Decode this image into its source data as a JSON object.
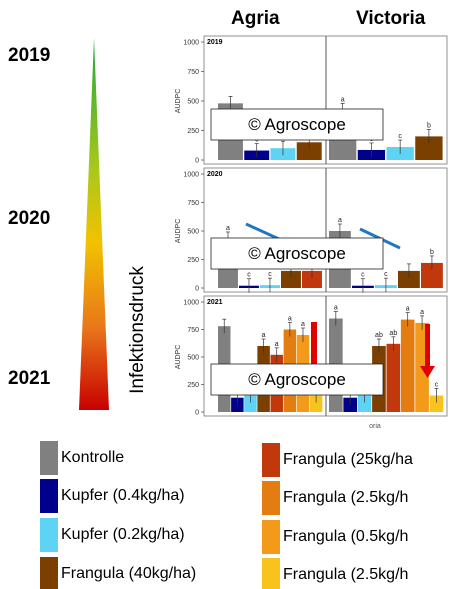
{
  "columns": [
    "Agria",
    "Victoria"
  ],
  "years": [
    "2019",
    "2020",
    "2021"
  ],
  "pressure_label": "Infektionsdruck",
  "watermark": "© Agroscope",
  "colors": {
    "Kontrolle": "#808080",
    "Kupfer04": "#00008b",
    "Kupfer02": "#5fd3f3",
    "Frangula40": "#7b3f00",
    "Frangula25": "#c1380c",
    "Frangula25b": "#e37d12",
    "Frangula05": "#f39a1b",
    "Frangula25c": "#f8c31c",
    "arrow": "#e00000",
    "decline_line": "#1f77c4"
  },
  "legend": [
    {
      "label": "Kontrolle",
      "color": "#808080"
    },
    {
      "label": "Kupfer (0.4kg/ha)",
      "color": "#00008b"
    },
    {
      "label": "Kupfer (0.2kg/ha)",
      "color": "#5fd3f3"
    },
    {
      "label": "Frangula (40kg/ha)",
      "color": "#7b3f00"
    },
    {
      "label": "Frangula (25kg/ha",
      "color": "#c1380c"
    },
    {
      "label": "Frangula (2.5kg/h",
      "color": "#e37d12"
    },
    {
      "label": "Frangula (0.5kg/h",
      "color": "#f39a1b"
    },
    {
      "label": "Frangula (2.5kg/h",
      "color": "#f8c31c"
    }
  ],
  "chart_data": [
    {
      "type": "bar",
      "year": "2019",
      "panel_title": "2019",
      "ylabel": "AUDPC",
      "ylim": [
        0,
        1000
      ],
      "yticks": [
        0,
        250,
        500,
        750,
        1000
      ],
      "facets": [
        {
          "name": "Agria",
          "bars": [
            {
              "treatment": "Kontrolle",
              "value": 480,
              "letter": ""
            },
            {
              "treatment": "Kupfer (0.4kg/ha)",
              "value": 80,
              "letter": "c"
            },
            {
              "treatment": "Kupfer (0.2kg/ha)",
              "value": 100,
              "letter": "bc"
            },
            {
              "treatment": "Frangula (40kg/ha)",
              "value": 150,
              "letter": "b"
            }
          ]
        },
        {
          "name": "Victoria",
          "bars": [
            {
              "treatment": "Kontrolle",
              "value": 420,
              "letter": "a"
            },
            {
              "treatment": "Kupfer (0.4kg/ha)",
              "value": 85,
              "letter": "c"
            },
            {
              "treatment": "Kupfer (0.2kg/ha)",
              "value": 110,
              "letter": "c"
            },
            {
              "treatment": "Frangula (40kg/ha)",
              "value": 200,
              "letter": "b"
            }
          ]
        }
      ]
    },
    {
      "type": "bar",
      "year": "2020",
      "panel_title": "2020",
      "ylabel": "AUDPC",
      "ylim": [
        0,
        1000
      ],
      "yticks": [
        0,
        250,
        500,
        750,
        1000
      ],
      "facets": [
        {
          "name": "Agria",
          "bars": [
            {
              "treatment": "Kontrolle",
              "value": 430,
              "letter": "a"
            },
            {
              "treatment": "Kupfer (0.4kg/ha)",
              "value": 20,
              "letter": "c"
            },
            {
              "treatment": "Kupfer (0.2kg/ha)",
              "value": 25,
              "letter": "c"
            },
            {
              "treatment": "Frangula (40kg/ha)",
              "value": 150,
              "letter": ""
            },
            {
              "treatment": "Frangula (25kg/ha",
              "value": 150,
              "letter": ""
            }
          ]
        },
        {
          "name": "Victoria",
          "bars": [
            {
              "treatment": "Kontrolle",
              "value": 500,
              "letter": "a"
            },
            {
              "treatment": "Kupfer (0.4kg/ha)",
              "value": 20,
              "letter": "c"
            },
            {
              "treatment": "Kupfer (0.2kg/ha)",
              "value": 25,
              "letter": "c"
            },
            {
              "treatment": "Frangula (40kg/ha)",
              "value": 150,
              "letter": ""
            },
            {
              "treatment": "Frangula (25kg/ha",
              "value": 220,
              "letter": "b"
            }
          ]
        }
      ]
    },
    {
      "type": "bar",
      "year": "2021",
      "panel_title": "2021",
      "ylabel": "AUDPC",
      "ylim": [
        0,
        1000
      ],
      "yticks": [
        0,
        250,
        500,
        750,
        1000
      ],
      "facets": [
        {
          "name": "Agria",
          "bars": [
            {
              "treatment": "Kontrolle",
              "value": 780,
              "letter": ""
            },
            {
              "treatment": "Kupfer (0.4kg/ha)",
              "value": 130,
              "letter": ""
            },
            {
              "treatment": "Kupfer (0.2kg/ha)",
              "value": 150,
              "letter": ""
            },
            {
              "treatment": "Frangula (40kg/ha)",
              "value": 600,
              "letter": "a"
            },
            {
              "treatment": "Frangula (25kg/ha",
              "value": 520,
              "letter": "a"
            },
            {
              "treatment": "Frangula (2.5kg/h",
              "value": 750,
              "letter": "a"
            },
            {
              "treatment": "Frangula (0.5kg/h",
              "value": 700,
              "letter": "a"
            },
            {
              "treatment": "Frangula (2.5kg/h",
              "value": 150,
              "letter": ""
            }
          ]
        },
        {
          "name": "Victoria",
          "bars": [
            {
              "treatment": "Kontrolle",
              "value": 850,
              "letter": "a"
            },
            {
              "treatment": "Kupfer (0.4kg/ha)",
              "value": 130,
              "letter": ""
            },
            {
              "treatment": "Kupfer (0.2kg/ha)",
              "value": 150,
              "letter": ""
            },
            {
              "treatment": "Frangula (40kg/ha)",
              "value": 600,
              "letter": "ab"
            },
            {
              "treatment": "Frangula (25kg/ha",
              "value": 620,
              "letter": "ab"
            },
            {
              "treatment": "Frangula (2.5kg/h",
              "value": 840,
              "letter": "a"
            },
            {
              "treatment": "Frangula (0.5kg/h",
              "value": 810,
              "letter": "a"
            },
            {
              "treatment": "Frangula (2.5kg/h",
              "value": 150,
              "letter": "c"
            }
          ]
        }
      ],
      "xlabel_fragment": "oria"
    }
  ]
}
